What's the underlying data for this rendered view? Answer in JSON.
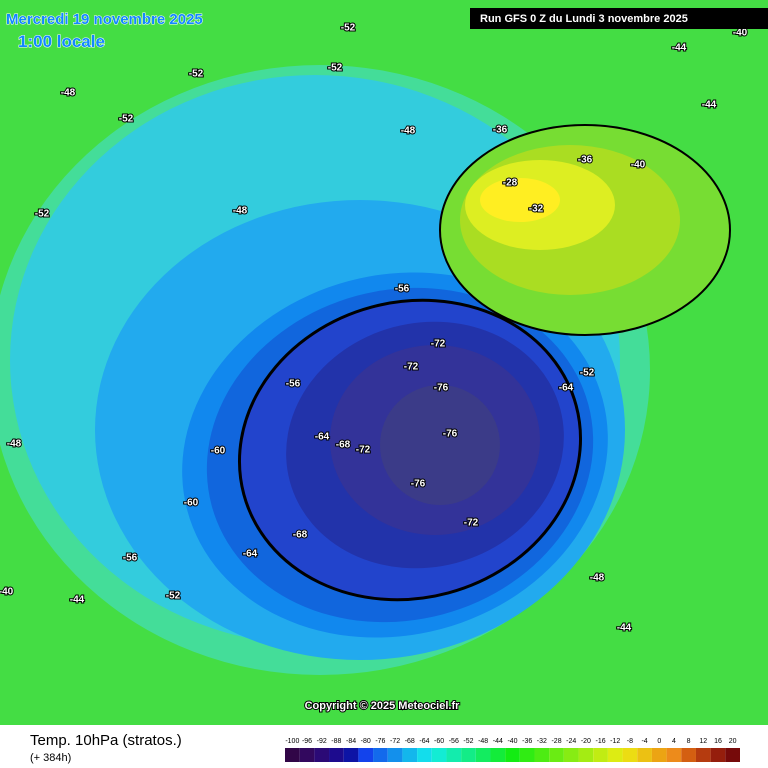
{
  "header": {
    "date": "Mercredi 19 novembre 2025",
    "time": "1:00 locale",
    "run": "Run GFS 0 Z du Lundi 3 novembre 2025"
  },
  "map": {
    "copyright": "Copyright © 2025 Meteociel.fr",
    "contour_labels": [
      -52,
      -52,
      -48,
      -52,
      -52,
      -48,
      -44,
      -40,
      -36,
      -28,
      -32,
      -36,
      -40,
      -48,
      -56,
      -52,
      -72,
      -72,
      -76,
      -76,
      -76,
      -72,
      -68,
      -64,
      -60,
      -56,
      -52,
      -48,
      -44,
      -44,
      -40,
      -44,
      -60,
      -64,
      -68,
      -72,
      -64,
      -56,
      -48,
      -52
    ]
  },
  "legend": {
    "title": "Temp. 10hPa (stratos.)",
    "lead": "(+ 384h)",
    "scale": [
      -100,
      -96,
      -92,
      -88,
      -84,
      -80,
      -76,
      -72,
      -68,
      -64,
      -60,
      -56,
      -52,
      -48,
      -44,
      -40,
      -36,
      -32,
      -28,
      -24,
      -20,
      -16,
      -12,
      -8,
      -4,
      0,
      4,
      8,
      12,
      16,
      20
    ]
  }
}
